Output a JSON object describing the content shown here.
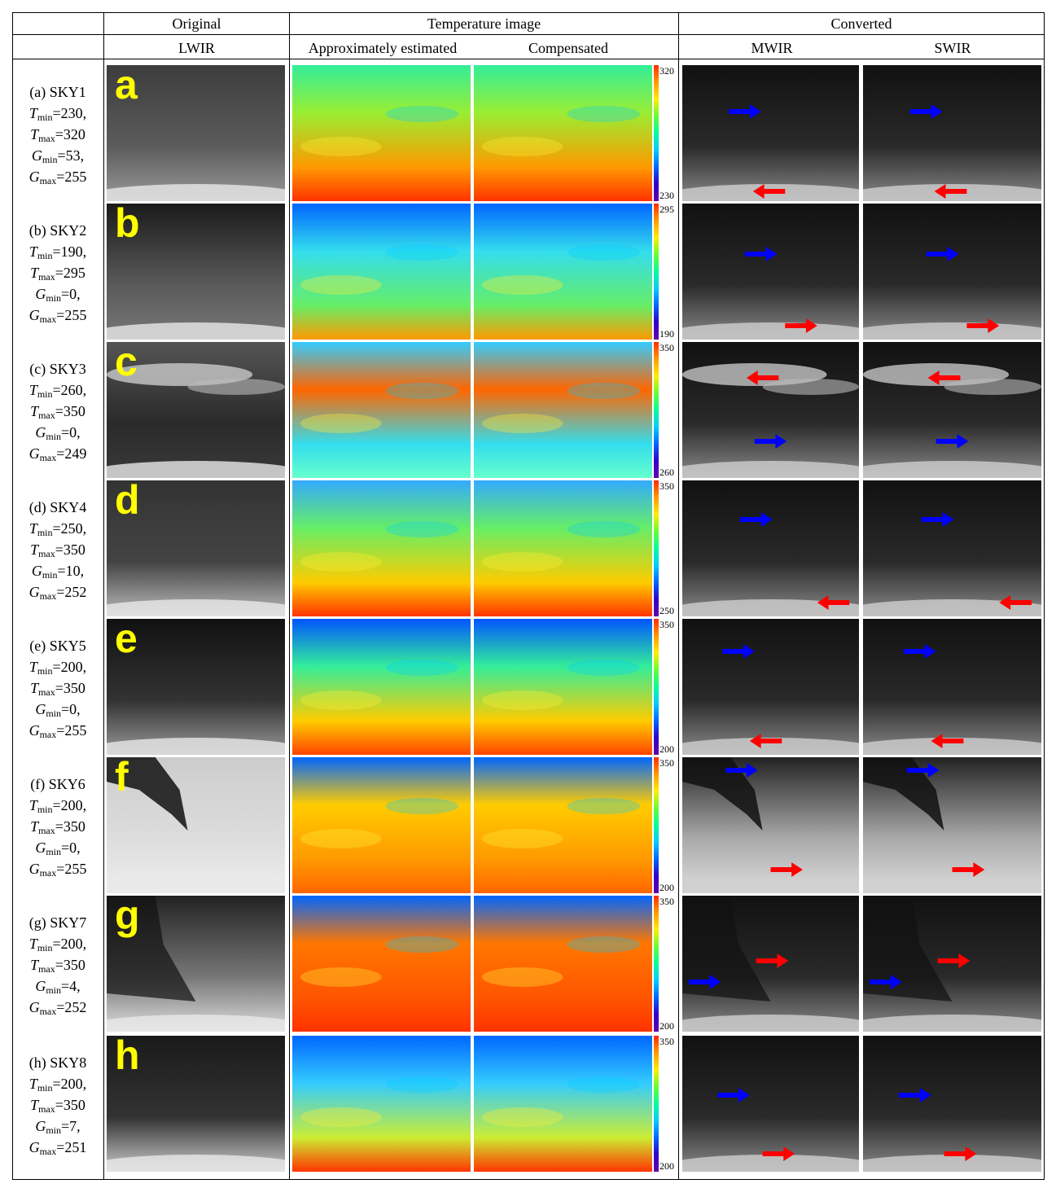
{
  "header": {
    "original": "Original",
    "temperature_image": "Temperature image",
    "converted": "Converted",
    "lwir": "LWIR",
    "approx": "Approximately estimated",
    "compensated": "Compensated",
    "mwir": "MWIR",
    "swir": "SWIR"
  },
  "colors": {
    "letter": "#ffff00",
    "arrow_blue": "#0000ff",
    "arrow_red": "#ff0000",
    "colormap": [
      "#ff2a00",
      "#ff9900",
      "#ffee00",
      "#66ff33",
      "#00ff99",
      "#00ccff",
      "#0066ff",
      "#3300cc",
      "#6600aa"
    ]
  },
  "rows": [
    {
      "letter": "a",
      "label": "(a) SKY1",
      "tmin": "230",
      "tmax": "320",
      "gmin": "53",
      "gmax": "255",
      "cb_top": "320",
      "cb_bottom": "230"
    },
    {
      "letter": "b",
      "label": "(b) SKY2",
      "tmin": "190",
      "tmax": "295",
      "gmin": "0",
      "gmax": "255",
      "cb_top": "295",
      "cb_bottom": "190"
    },
    {
      "letter": "c",
      "label": "(c) SKY3",
      "tmin": "260",
      "tmax": "350",
      "gmin": "0",
      "gmax": "249",
      "cb_top": "350",
      "cb_bottom": "260"
    },
    {
      "letter": "d",
      "label": "(d) SKY4",
      "tmin": "250",
      "tmax": "350",
      "gmin": "10",
      "gmax": "252",
      "cb_top": "350",
      "cb_bottom": "250"
    },
    {
      "letter": "e",
      "label": "(e) SKY5",
      "tmin": "200",
      "tmax": "350",
      "gmin": "0",
      "gmax": "255",
      "cb_top": "350",
      "cb_bottom": "200"
    },
    {
      "letter": "f",
      "label": "(f) SKY6",
      "tmin": "200",
      "tmax": "350",
      "gmin": "0",
      "gmax": "255",
      "cb_top": "350",
      "cb_bottom": "200"
    },
    {
      "letter": "g",
      "label": "(g) SKY7",
      "tmin": "200",
      "tmax": "350",
      "gmin": "4",
      "gmax": "252",
      "cb_top": "350",
      "cb_bottom": "200"
    },
    {
      "letter": "h",
      "label": "(h) SKY8",
      "tmin": "200",
      "tmax": "350",
      "gmin": "7",
      "gmax": "251",
      "cb_top": "350",
      "cb_bottom": "200"
    }
  ]
}
